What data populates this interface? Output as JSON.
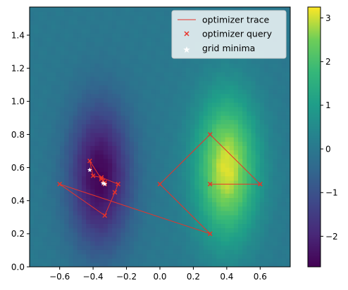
{
  "chart_data": {
    "type": "heatmap",
    "title": "",
    "xlabel": "",
    "ylabel": "",
    "xlim": [
      -0.78,
      0.78
    ],
    "ylim": [
      0.0,
      1.57
    ],
    "x_ticks": [
      -0.6,
      -0.4,
      -0.2,
      0.0,
      0.2,
      0.4,
      0.6
    ],
    "x_tick_labels": [
      "−0.6",
      "−0.4",
      "−0.2",
      "0.0",
      "0.2",
      "0.4",
      "0.6"
    ],
    "y_ticks": [
      0.0,
      0.2,
      0.4,
      0.6,
      0.8,
      1.0,
      1.2,
      1.4
    ],
    "y_tick_labels": [
      "0.0",
      "0.2",
      "0.4",
      "0.6",
      "0.8",
      "1.0",
      "1.2",
      "1.4"
    ],
    "grid": false,
    "colormap": "viridis",
    "colorbar": {
      "range": [
        -2.7,
        3.25
      ],
      "ticks": [
        -2,
        -1,
        0,
        1,
        2,
        3
      ],
      "tick_labels": [
        "−2",
        "−1",
        "0",
        "1",
        "2",
        "3"
      ]
    },
    "surface": {
      "description_of_fit": "two gaussian bumps",
      "min_center": [
        -0.36,
        0.55
      ],
      "max_center": [
        0.4,
        0.6
      ]
    },
    "legend": {
      "placement": "top-right",
      "entries": [
        {
          "label": "optimizer trace",
          "kind": "line",
          "color": "#e8332a"
        },
        {
          "label": "optimizer query",
          "kind": "x-marker",
          "color": "#e8332a"
        },
        {
          "label": "grid minima",
          "kind": "star-marker",
          "color": "#ffffff"
        }
      ]
    },
    "series": [
      {
        "name": "optimizer trace",
        "x": [
          0.3,
          0.6,
          0.3,
          0.0,
          0.3,
          -0.6,
          -0.33,
          -0.27,
          -0.25,
          -0.35,
          -0.4,
          -0.42,
          -0.35,
          -0.33,
          -0.33,
          -0.34
        ],
        "y": [
          0.5,
          0.5,
          0.8,
          0.5,
          0.2,
          0.5,
          0.31,
          0.45,
          0.5,
          0.54,
          0.55,
          0.64,
          0.53,
          0.51,
          0.5,
          0.52
        ]
      },
      {
        "name": "optimizer query",
        "x": [
          0.3,
          0.6,
          0.3,
          0.0,
          0.3,
          -0.6,
          -0.33,
          -0.27,
          -0.25,
          -0.35,
          -0.4,
          -0.42,
          -0.35,
          -0.33,
          -0.33,
          -0.34
        ],
        "y": [
          0.5,
          0.5,
          0.8,
          0.5,
          0.2,
          0.5,
          0.31,
          0.45,
          0.5,
          0.54,
          0.55,
          0.64,
          0.53,
          0.51,
          0.5,
          0.52
        ]
      },
      {
        "name": "grid minima",
        "x": [
          -0.42,
          -0.34,
          -0.33
        ],
        "y": [
          0.585,
          0.505,
          0.5
        ]
      }
    ]
  }
}
